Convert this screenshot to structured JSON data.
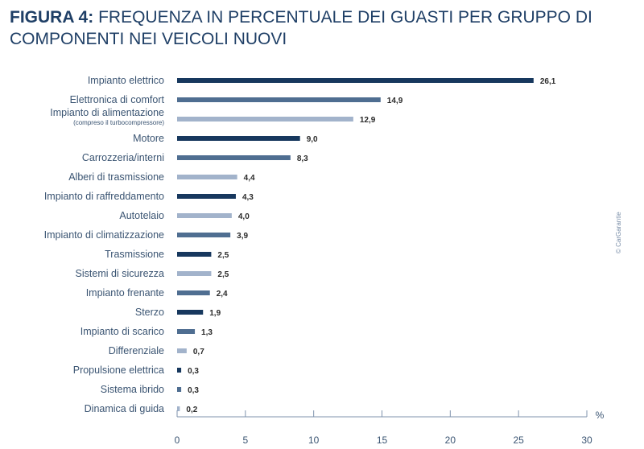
{
  "title": {
    "prefix": "FIGURA 4:",
    "text": "FREQUENZA IN PERCENTUALE DEI GUASTI PER GRUPPO DI COMPONENTI NEI VEICOLI NUOVI"
  },
  "credit": "© CarGarantie",
  "colors": {
    "dark": "#17385e",
    "medium": "#4f6e91",
    "light": "#a2b3cb"
  },
  "chart_data": {
    "type": "bar",
    "orientation": "horizontal",
    "categories": [
      "Impianto elettrico",
      "Elettronica di comfort",
      "Impianto di alimentazione",
      "Motore",
      "Carrozzeria/interni",
      "Alberi di trasmissione",
      "Impianto di raffreddamento",
      "Autotelaio",
      "Impianto di climatizzazione",
      "Trasmissione",
      "Sistemi di sicurezza",
      "Impianto frenante",
      "Sterzo",
      "Impianto di scarico",
      "Differenziale",
      "Propulsione elettrica",
      "Sistema ibrido",
      "Dinamica di guida"
    ],
    "category_notes": [
      "",
      "",
      "(compreso il turbocompressore)",
      "",
      "",
      "",
      "",
      "",
      "",
      "",
      "",
      "",
      "",
      "",
      "",
      "",
      "",
      ""
    ],
    "values": [
      26.1,
      14.9,
      12.9,
      9.0,
      8.3,
      4.4,
      4.3,
      4.0,
      3.9,
      2.5,
      2.5,
      2.4,
      1.9,
      1.3,
      0.7,
      0.3,
      0.3,
      0.2
    ],
    "value_labels": [
      "26,1",
      "14,9",
      "12,9",
      "9,0",
      "8,3",
      "4,4",
      "4,3",
      "4,0",
      "3,9",
      "2,5",
      "2,5",
      "2,4",
      "1,9",
      "1,3",
      "0,7",
      "0,3",
      "0,3",
      "0,2"
    ],
    "bar_colors": [
      "dark",
      "medium",
      "light",
      "dark",
      "medium",
      "light",
      "dark",
      "light",
      "medium",
      "dark",
      "light",
      "medium",
      "dark",
      "medium",
      "light",
      "dark",
      "medium",
      "light"
    ],
    "xlim": [
      0,
      30
    ],
    "xticks": [
      0,
      5,
      10,
      15,
      20,
      25,
      30
    ],
    "xunit": "%",
    "grid": false
  }
}
